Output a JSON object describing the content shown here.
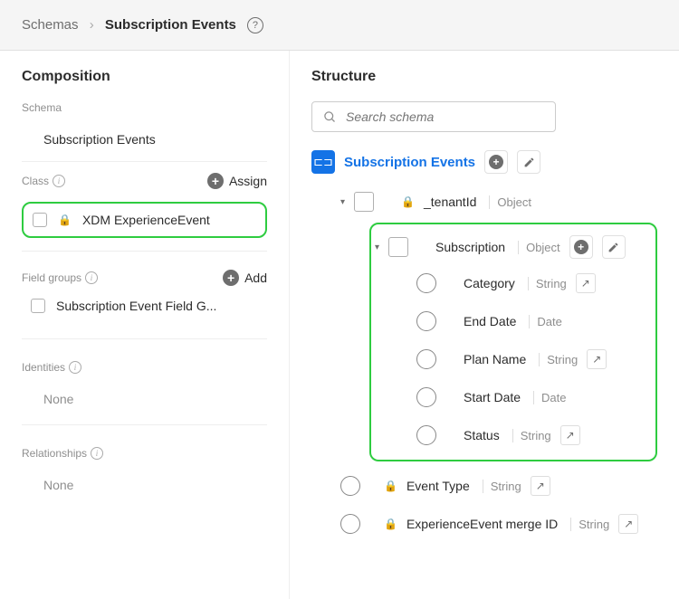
{
  "breadcrumb": {
    "root": "Schemas",
    "current": "Subscription Events"
  },
  "left": {
    "title": "Composition",
    "schema_label": "Schema",
    "schema_name": "Subscription Events",
    "class_label": "Class",
    "assign": "Assign",
    "class_item": "XDM ExperienceEvent",
    "fg_label": "Field groups",
    "add": "Add",
    "fg_item": "Subscription Event Field G...",
    "identities_label": "Identities",
    "relationships_label": "Relationships",
    "none": "None"
  },
  "right": {
    "title": "Structure",
    "search_placeholder": "Search schema",
    "root": "Subscription Events",
    "tenant": {
      "label": "_tenantId",
      "type": "Object"
    },
    "subscription": {
      "label": "Subscription",
      "type": "Object"
    },
    "fields": [
      {
        "label": "Category",
        "type": "String",
        "arrow": true
      },
      {
        "label": "End Date",
        "type": "Date",
        "arrow": false
      },
      {
        "label": "Plan Name",
        "type": "String",
        "arrow": true
      },
      {
        "label": "Start Date",
        "type": "Date",
        "arrow": false
      },
      {
        "label": "Status",
        "type": "String",
        "arrow": true
      }
    ],
    "event_type": {
      "label": "Event Type",
      "type": "String"
    },
    "merge_id": {
      "label": "ExperienceEvent merge ID",
      "type": "String"
    }
  },
  "colors": {
    "highlight": "#2ecc40",
    "primary": "#1473e6"
  }
}
